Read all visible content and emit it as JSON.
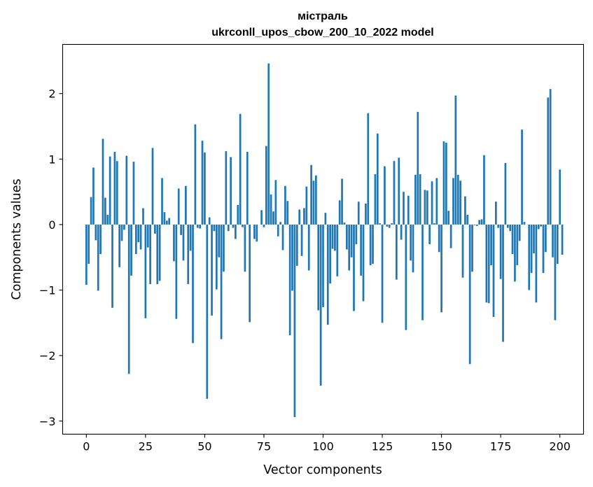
{
  "chart_data": {
    "type": "bar",
    "title": "містраль",
    "subtitle": "ukrconll_upos_cbow_200_10_2022 model",
    "xlabel": "Vector components",
    "ylabel": "Components values",
    "xlim": [
      -10,
      210
    ],
    "ylim": [
      -3.2,
      2.75
    ],
    "xticks": [
      0,
      25,
      50,
      75,
      100,
      125,
      150,
      175,
      200
    ],
    "yticks": [
      -3,
      -2,
      -1,
      0,
      1,
      2
    ],
    "ytick_labels": [
      "−3",
      "−2",
      "−1",
      "0",
      "1",
      "2"
    ],
    "bar_color": "#1f77b4",
    "grid": false,
    "values": [
      -0.92,
      -0.6,
      0.42,
      0.87,
      -0.24,
      -1.01,
      -0.45,
      1.31,
      0.41,
      0.15,
      1.04,
      -1.27,
      1.11,
      0.97,
      -0.65,
      -0.25,
      -0.08,
      1.05,
      -2.28,
      -0.78,
      0.96,
      -0.45,
      -0.27,
      -0.38,
      0.25,
      -1.43,
      -0.35,
      -0.91,
      1.17,
      -0.14,
      -0.91,
      -0.86,
      0.71,
      0.19,
      0.06,
      0.1,
      0.0,
      -0.56,
      -1.44,
      0.55,
      -0.16,
      -0.55,
      0.59,
      -0.91,
      -0.4,
      -1.81,
      1.53,
      -0.05,
      -0.06,
      1.28,
      1.1,
      -2.66,
      0.11,
      -1.39,
      -0.1,
      -0.99,
      -0.5,
      -1.75,
      -0.72,
      1.12,
      -0.1,
      1.03,
      -0.05,
      -0.22,
      0.3,
      1.69,
      -0.04,
      -0.72,
      1.11,
      -1.49,
      0.0,
      -0.22,
      -0.26,
      0.0,
      0.22,
      -0.04,
      1.2,
      2.46,
      0.46,
      0.2,
      0.68,
      -0.18,
      0.04,
      -0.39,
      0.59,
      0.36,
      -1.69,
      -1.01,
      -2.94,
      -0.63,
      0.23,
      -0.48,
      0.25,
      0.58,
      -0.7,
      0.91,
      0.67,
      0.75,
      -1.31,
      -2.46,
      -1.26,
      0.18,
      -1.53,
      -0.9,
      -0.37,
      -0.4,
      -0.79,
      0.37,
      0.7,
      0.03,
      -0.38,
      -0.7,
      -0.5,
      -1.32,
      -0.3,
      0.35,
      -0.78,
      -1.17,
      0.32,
      1.7,
      -0.62,
      -0.6,
      0.77,
      1.39,
      0.02,
      -1.5,
      0.89,
      -0.03,
      -0.05,
      0.02,
      0.97,
      -0.84,
      1.02,
      -0.23,
      0.5,
      -1.61,
      0.44,
      -0.55,
      -0.73,
      0.76,
      1.72,
      0.77,
      -1.46,
      0.53,
      0.52,
      -0.3,
      0.66,
      0.02,
      0.71,
      -0.42,
      -1.34,
      1.27,
      1.25,
      0.21,
      -0.36,
      0.71,
      1.97,
      0.76,
      0.67,
      -0.81,
      0.43,
      0.15,
      -2.13,
      -0.72,
      -0.01,
      -0.02,
      0.07,
      0.08,
      1.06,
      -1.19,
      -1.2,
      -0.62,
      -1.41,
      0.35,
      -0.05,
      -0.83,
      -1.79,
      0.94,
      -0.05,
      -0.1,
      -0.45,
      -0.87,
      -0.62,
      -0.25,
      1.45,
      0.04,
      0.0,
      -1.0,
      -0.74,
      -0.44,
      -1.19,
      -0.07,
      -0.03,
      -0.74,
      -0.42,
      1.94,
      2.07,
      -0.5,
      -1.46,
      -0.6,
      0.84,
      -0.46
    ]
  }
}
